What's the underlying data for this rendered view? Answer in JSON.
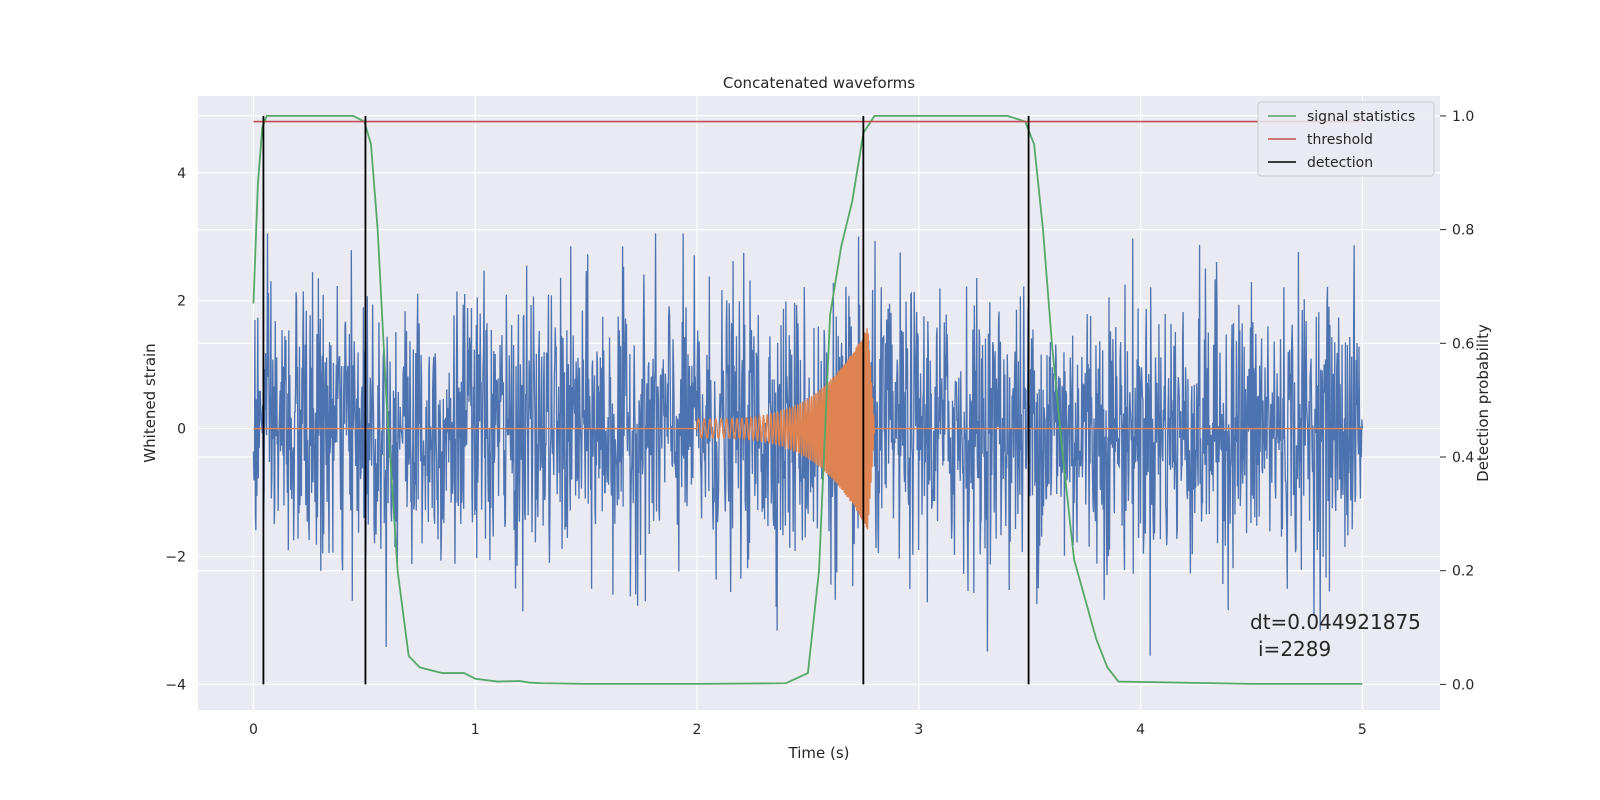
{
  "chart_data": {
    "type": "line",
    "title": "Concatenated waveforms",
    "xlabel": "Time (s)",
    "ylabel_left": "Whitened strain",
    "ylabel_right": "Detection probability",
    "xlim": [
      -0.25,
      5.35
    ],
    "ylim_left": [
      -4.4,
      5.2
    ],
    "ylim_right": [
      -0.045,
      1.035
    ],
    "x_ticks": [
      "0",
      "1",
      "2",
      "3",
      "4",
      "5"
    ],
    "y_left_ticks": [
      "−4",
      "−2",
      "0",
      "2",
      "4"
    ],
    "y_right_ticks": [
      "0.0",
      "0.2",
      "0.4",
      "0.6",
      "0.8",
      "1.0"
    ],
    "grid": true,
    "legend_position": "top-right",
    "legend": [
      "signal statistics",
      "threshold",
      "detection"
    ],
    "colors": {
      "background": "#eaeaf2",
      "whitened_strain": "#4c72b0",
      "injected_waveform": "#dd8452",
      "signal_statistics": "#55a868",
      "threshold": "#c44e52",
      "detection": "#000000",
      "grid": "#ffffff"
    },
    "series": [
      {
        "name": "signal statistics",
        "axis": "right",
        "x": [
          0,
          0.02,
          0.04,
          0.06,
          0.1,
          0.2,
          0.3,
          0.45,
          0.5,
          0.53,
          0.56,
          0.6,
          0.65,
          0.7,
          0.75,
          0.8,
          0.85,
          0.9,
          0.95,
          1.0,
          1.1,
          1.2,
          1.25,
          1.3,
          1.5,
          2.0,
          2.4,
          2.5,
          2.55,
          2.6,
          2.65,
          2.7,
          2.75,
          2.8,
          3.0,
          3.4,
          3.48,
          3.52,
          3.56,
          3.6,
          3.65,
          3.7,
          3.75,
          3.8,
          3.85,
          3.9,
          4.5,
          5.0
        ],
        "y": [
          0.67,
          0.88,
          0.98,
          1.0,
          1.0,
          1.0,
          1.0,
          1.0,
          0.99,
          0.95,
          0.8,
          0.5,
          0.2,
          0.05,
          0.03,
          0.025,
          0.02,
          0.02,
          0.02,
          0.01,
          0.005,
          0.006,
          0.003,
          0.002,
          0.001,
          0.001,
          0.002,
          0.02,
          0.2,
          0.65,
          0.77,
          0.85,
          0.97,
          1.0,
          1.0,
          1.0,
          0.99,
          0.95,
          0.8,
          0.6,
          0.4,
          0.22,
          0.15,
          0.08,
          0.03,
          0.005,
          0.001,
          0.001
        ]
      },
      {
        "name": "threshold",
        "axis": "right",
        "x": [
          0,
          5
        ],
        "y": [
          0.99,
          0.99
        ]
      },
      {
        "name": "detection",
        "axis": "right",
        "type": "vlines",
        "x": [
          0.045,
          0.505,
          2.75,
          3.495
        ],
        "ymin": 0,
        "ymax": 1.0
      },
      {
        "axis": "left",
        "type": "noise",
        "x_range": [
          0,
          5
        ],
        "amplitude_sigma": 1.05,
        "samples": 2290
      },
      {
        "axis": "left",
        "type": "chirp",
        "x_range": [
          2.0,
          2.8
        ],
        "amplitude_start": 0.15,
        "amplitude_peak": 1.8
      }
    ],
    "annotations": [
      "dt=0.044921875",
      "i=2289"
    ]
  }
}
